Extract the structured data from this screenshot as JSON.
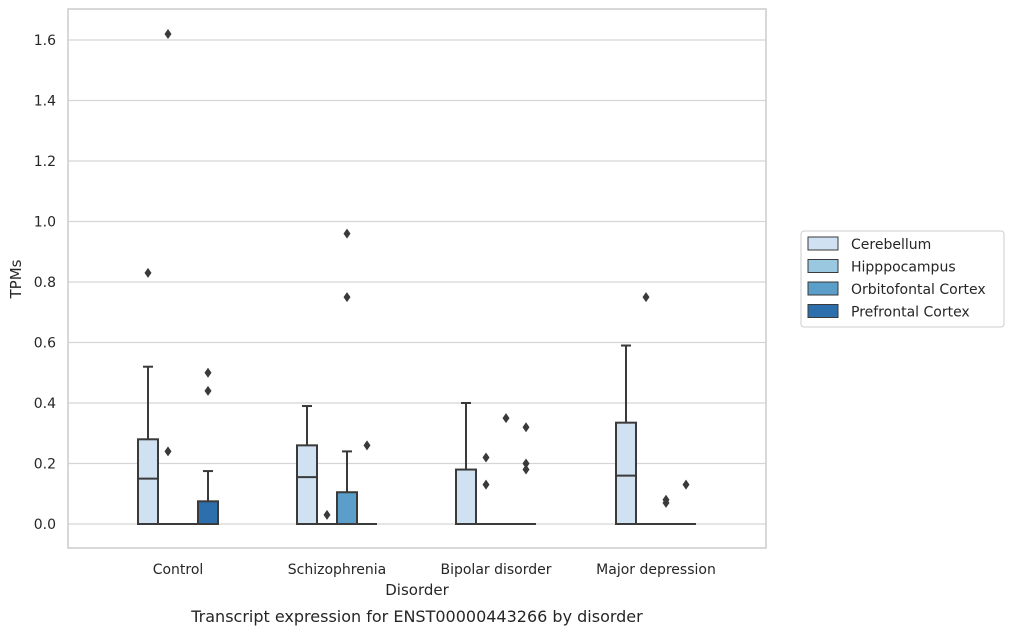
{
  "chart_data": {
    "type": "box",
    "caption": "Transcript expression for ENST00000443266 by disorder",
    "xlabel": "Disorder",
    "ylabel": "TPMs",
    "ylim": [
      -0.08,
      1.7
    ],
    "yticks": [
      "0.0",
      "0.2",
      "0.4",
      "0.6",
      "0.8",
      "1.0",
      "1.2",
      "1.4",
      "1.6"
    ],
    "categories": [
      "Control",
      "Schizophrenia",
      "Bipolar disorder",
      "Major depression"
    ],
    "grid": true,
    "legend_position": "right",
    "series": [
      {
        "name": "Cerebellum",
        "color": "#d0e1f2",
        "boxes": [
          {
            "whislo": 0.0,
            "q1": 0.0,
            "med": 0.15,
            "q3": 0.28,
            "whishi": 0.52,
            "fliers": [
              0.83
            ]
          },
          {
            "whislo": 0.0,
            "q1": 0.0,
            "med": 0.155,
            "q3": 0.26,
            "whishi": 0.39,
            "fliers": []
          },
          {
            "whislo": 0.0,
            "q1": 0.0,
            "med": 0.0,
            "q3": 0.18,
            "whishi": 0.4,
            "fliers": []
          },
          {
            "whislo": 0.0,
            "q1": 0.0,
            "med": 0.16,
            "q3": 0.335,
            "whishi": 0.59,
            "fliers": []
          }
        ]
      },
      {
        "name": "Hipppocampus",
        "color": "#9ac8e0",
        "boxes": [
          {
            "whislo": 0.0,
            "q1": 0.0,
            "med": 0.0,
            "q3": 0.0,
            "whishi": 0.0,
            "fliers": [
              1.62,
              0.24
            ]
          },
          {
            "whislo": 0.0,
            "q1": 0.0,
            "med": 0.0,
            "q3": 0.0,
            "whishi": 0.0,
            "fliers": [
              0.03
            ]
          },
          {
            "whislo": 0.0,
            "q1": 0.0,
            "med": 0.0,
            "q3": 0.0,
            "whishi": 0.0,
            "fliers": [
              0.22,
              0.13
            ]
          },
          {
            "whislo": 0.0,
            "q1": 0.0,
            "med": 0.0,
            "q3": 0.0,
            "whishi": 0.0,
            "fliers": [
              0.75
            ]
          }
        ]
      },
      {
        "name": "Orbitofontal Cortex",
        "color": "#5a9ec9",
        "boxes": [
          {
            "whislo": 0.0,
            "q1": 0.0,
            "med": 0.0,
            "q3": 0.0,
            "whishi": 0.0,
            "fliers": []
          },
          {
            "whislo": 0.0,
            "q1": 0.0,
            "med": 0.0,
            "q3": 0.105,
            "whishi": 0.24,
            "fliers": [
              0.96,
              0.75
            ]
          },
          {
            "whislo": 0.0,
            "q1": 0.0,
            "med": 0.0,
            "q3": 0.0,
            "whishi": 0.0,
            "fliers": [
              0.35
            ]
          },
          {
            "whislo": 0.0,
            "q1": 0.0,
            "med": 0.0,
            "q3": 0.0,
            "whishi": 0.0,
            "fliers": [
              0.08,
              0.07
            ]
          }
        ]
      },
      {
        "name": "Prefrontal Cortex",
        "color": "#2d6eac",
        "boxes": [
          {
            "whislo": 0.0,
            "q1": 0.0,
            "med": 0.0,
            "q3": 0.075,
            "whishi": 0.175,
            "fliers": [
              0.5,
              0.44
            ]
          },
          {
            "whislo": 0.0,
            "q1": 0.0,
            "med": 0.0,
            "q3": 0.0,
            "whishi": 0.0,
            "fliers": [
              0.26
            ]
          },
          {
            "whislo": 0.0,
            "q1": 0.0,
            "med": 0.0,
            "q3": 0.0,
            "whishi": 0.0,
            "fliers": [
              0.32,
              0.2,
              0.18
            ]
          },
          {
            "whislo": 0.0,
            "q1": 0.0,
            "med": 0.0,
            "q3": 0.0,
            "whishi": 0.0,
            "fliers": [
              0.13
            ]
          }
        ]
      }
    ]
  }
}
